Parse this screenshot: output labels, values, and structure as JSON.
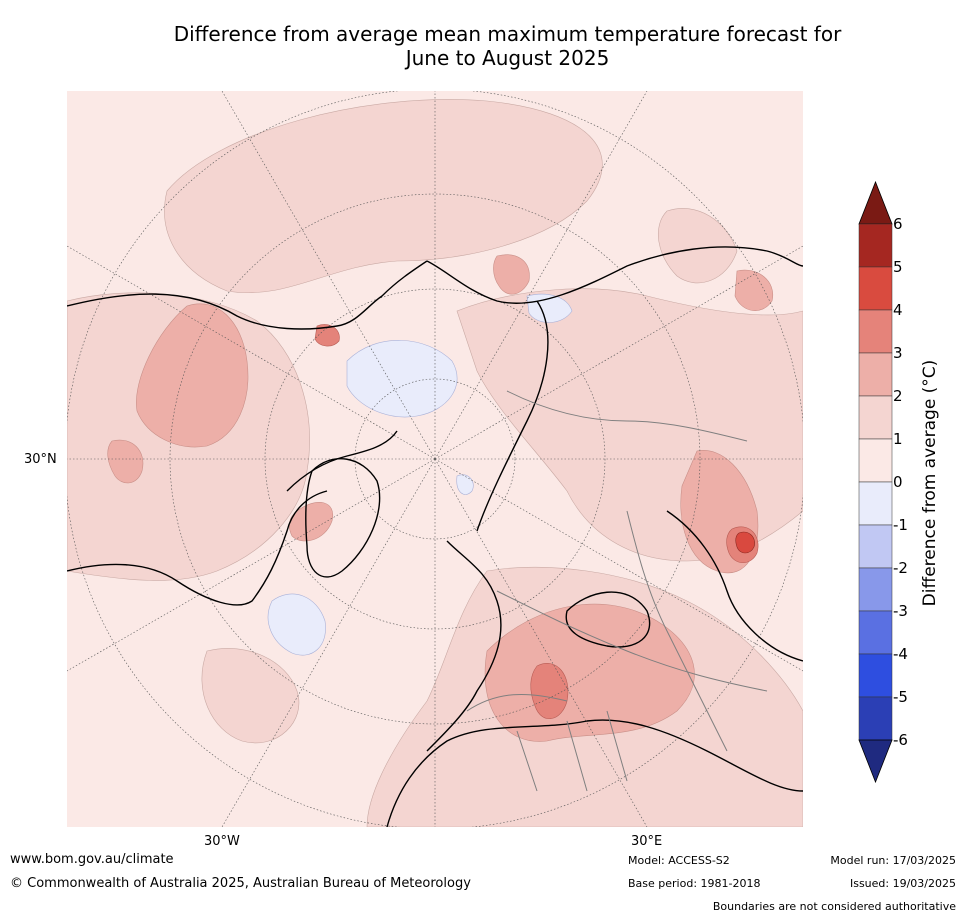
{
  "title_line1": "Difference from average mean maximum temperature forecast for",
  "title_line2": "June to August 2025",
  "map": {
    "projection": "north polar stereographic",
    "lat_label": "30°N",
    "lon_labels": [
      "30°W",
      "30°E"
    ],
    "colors": {
      "background": "#fbe9e6",
      "plus_1_2": "#f4d5d1",
      "plus_2_3": "#edafa8",
      "plus_3_4": "#e4837a",
      "plus_4_5": "#d9493f",
      "plus_5_6": "#a6261f",
      "minus_0_1": "#e9ecfb"
    }
  },
  "colorbar": {
    "title": "Difference from average (°C)",
    "ticks": [
      "6",
      "5",
      "4",
      "3",
      "2",
      "1",
      "0",
      "-1",
      "-2",
      "-3",
      "-4",
      "-5",
      "-6"
    ],
    "colors": [
      "#a52721",
      "#d94b3f",
      "#e5837a",
      "#edafa8",
      "#f4d5d1",
      "#fbe9e6",
      "#e9ecfb",
      "#c1c8f3",
      "#8898ea",
      "#5a70e2",
      "#2e4ee0",
      "#2b3fb5"
    ],
    "over_color": "#7a1a14",
    "under_color": "#1f2a80"
  },
  "footer": {
    "website": "www.bom.gov.au/climate",
    "copyright": "© Commonwealth of Australia 2025, Australian Bureau of Meteorology",
    "model": "Model: ACCESS-S2",
    "base_period": "Base period: 1981-2018",
    "model_run": "Model run: 17/03/2025",
    "issued": "Issued: 19/03/2025",
    "disclaimer": "Boundaries are not considered authoritative"
  }
}
